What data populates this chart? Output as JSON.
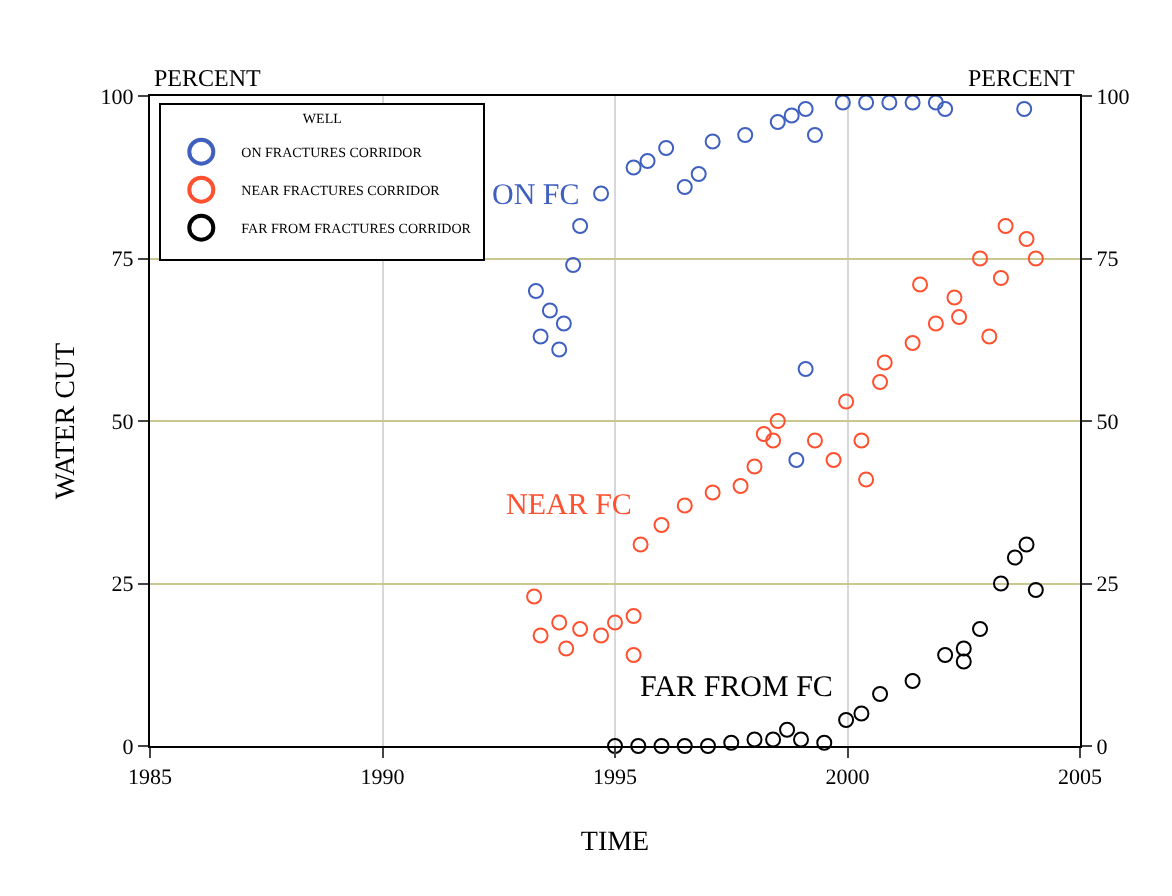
{
  "chart_data": {
    "type": "scatter",
    "xlabel": "TIME",
    "ylabel": "WATER CUT",
    "legend_title": "WELL",
    "legend": "top left",
    "grid": true,
    "marker": "circle",
    "xlim": [
      1985,
      2005
    ],
    "xticks": [
      1985,
      1990,
      1995,
      2000,
      2005
    ],
    "ylim": [
      0,
      100
    ],
    "yticks": [
      0,
      25,
      50,
      75,
      100
    ],
    "y2lim": [
      0,
      100
    ],
    "y2ticks": [
      0,
      25,
      50,
      75,
      100
    ],
    "annotations": [
      "PERCENT",
      "PERCENT",
      "ON FC",
      "NEAR FC",
      "FAR FROM FC"
    ],
    "series": [
      {
        "name": "ON FRACTURES CORRIDOR",
        "color": "#4060c0",
        "x": [
          1993.3,
          1993.4,
          1993.6,
          1993.8,
          1993.9,
          1994.1,
          1994.25,
          1994.7,
          1995.4,
          1995.7,
          1996.1,
          1996.5,
          1996.8,
          1997.1,
          1997.8,
          1998.5,
          1998.8,
          1999.1,
          1999.3,
          1999.9,
          2000.4,
          2000.9,
          2001.4,
          2001.9,
          2002.1,
          2003.8,
          1999.1,
          1998.9
        ],
        "values": [
          70,
          63,
          67,
          61,
          65,
          74,
          80,
          85,
          89,
          90,
          92,
          86,
          88,
          93,
          94,
          96,
          97,
          98,
          94,
          99,
          99,
          99,
          99,
          99,
          98,
          98,
          58,
          44
        ]
      },
      {
        "name": "NEAR FRACTURES CORRIDOR",
        "color": "#ff5030",
        "x": [
          1993.26,
          1993.4,
          1993.8,
          1993.95,
          1994.25,
          1994.7,
          1995.0,
          1995.4,
          1995.4,
          1995.55,
          1996.0,
          1996.5,
          1997.1,
          1997.7,
          1998.0,
          1998.2,
          1998.4,
          1998.5,
          1999.3,
          1999.7,
          2000.3,
          2000.4,
          1999.97,
          2000.7,
          2000.8,
          2001.4,
          2001.56,
          2001.9,
          2002.3,
          2002.4,
          2002.85,
          2003.05,
          2003.3,
          2003.4,
          2003.85,
          2004.05
        ],
        "values": [
          23,
          17,
          19,
          15,
          18,
          17,
          19,
          20,
          14,
          31,
          34,
          37,
          39,
          40,
          43,
          48,
          47,
          50,
          47,
          44,
          47,
          41,
          53,
          56,
          59,
          62,
          71,
          65,
          69,
          66,
          75,
          63,
          72,
          80,
          78,
          75
        ]
      },
      {
        "name": "FAR FROM FRACTURES CORRIDOR",
        "color": "#000000",
        "x": [
          1995.0,
          1995.5,
          1996.0,
          1996.5,
          1997.0,
          1997.5,
          1998.0,
          1998.4,
          1998.7,
          1999.0,
          1999.5,
          1999.97,
          2000.3,
          2000.7,
          2001.4,
          2002.1,
          2002.5,
          2002.5,
          2002.85,
          2003.3,
          2003.6,
          2003.85,
          2004.05
        ],
        "values": [
          0,
          0,
          0,
          0,
          0,
          0.5,
          1,
          1,
          2.5,
          1,
          0.5,
          4,
          5,
          8,
          10,
          14,
          15,
          13,
          18,
          25,
          29,
          31,
          24
        ]
      }
    ]
  }
}
